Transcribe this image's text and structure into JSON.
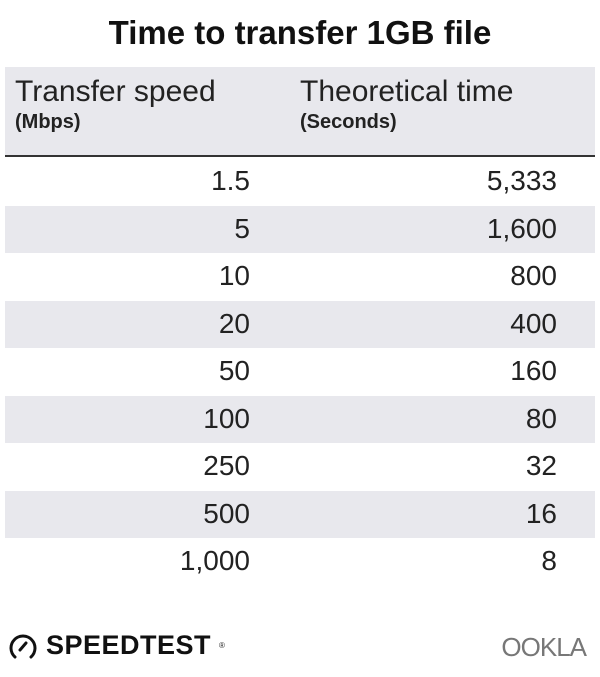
{
  "chart_data": {
    "type": "table",
    "title": "Time to transfer 1GB file",
    "columns": [
      {
        "label": "Transfer speed",
        "unit": "(Mbps)"
      },
      {
        "label": "Theoretical time",
        "unit": "(Seconds)"
      }
    ],
    "rows": [
      [
        "1.5",
        "5,333"
      ],
      [
        "5",
        "1,600"
      ],
      [
        "10",
        "800"
      ],
      [
        "20",
        "400"
      ],
      [
        "50",
        "160"
      ],
      [
        "100",
        "80"
      ],
      [
        "250",
        "32"
      ],
      [
        "500",
        "16"
      ],
      [
        "1,000",
        "8"
      ]
    ],
    "colors": {
      "header_bg": "#e8e8ed",
      "stripe": "#e8e8ed",
      "text": "#222222"
    }
  },
  "footer": {
    "left_logo": "SPEEDTEST",
    "right_logo": "OOKLA"
  }
}
